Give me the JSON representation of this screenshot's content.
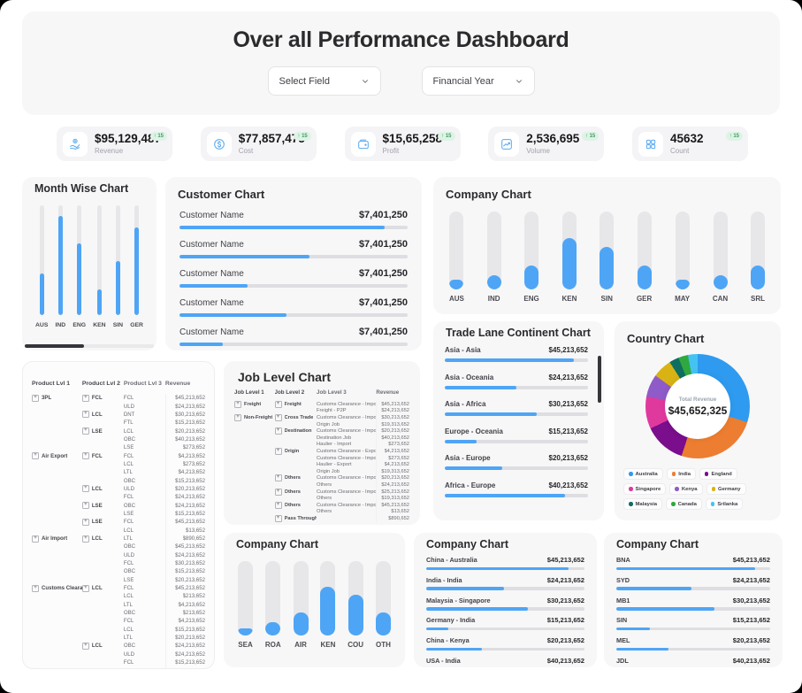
{
  "window": {
    "title": "Over all Performance Dashboard"
  },
  "filters": {
    "select_field": "Select Field",
    "financial_year": "Financial Year"
  },
  "colors": {
    "accent_blue": "#4EA5F5",
    "bar_track": "#E7E7EA",
    "badge_green_bg": "#DEF3E5",
    "badge_green_text": "#3D9B63",
    "card_bg": "#F7F7F8"
  },
  "kpis": [
    {
      "icon": "hand-coin-icon",
      "value": "$95,129,487",
      "label": "Revenue",
      "badge": "↑ 15"
    },
    {
      "icon": "dollar-circle-icon",
      "value": "$77,857,475",
      "label": "Cost",
      "badge": "↑ 15"
    },
    {
      "icon": "wallet-icon",
      "value": "$15,65,258",
      "label": "Profit",
      "badge": "↑ 15"
    },
    {
      "icon": "trend-line-icon",
      "value": "2,536,695",
      "label": "Volume",
      "badge": "↑ 15"
    },
    {
      "icon": "grid-icon",
      "value": "45632",
      "label": "Count",
      "badge": "↑ 15"
    }
  ],
  "chart_data": [
    {
      "id": "month_wise",
      "type": "bar",
      "title": "Month Wise Chart",
      "categories": [
        "AUS",
        "IND",
        "ENG",
        "KEN",
        "SIN",
        "GER"
      ],
      "values_pct": [
        38,
        90,
        65,
        23,
        49,
        80
      ]
    },
    {
      "id": "customer",
      "type": "bar",
      "title": "Customer Chart",
      "rows": [
        {
          "label": "Customer Name",
          "value": "$7,401,250",
          "pct": 90
        },
        {
          "label": "Customer Name",
          "value": "$7,401,250",
          "pct": 57
        },
        {
          "label": "Customer Name",
          "value": "$7,401,250",
          "pct": 30
        },
        {
          "label": "Customer Name",
          "value": "$7,401,250",
          "pct": 47
        },
        {
          "label": "Customer Name",
          "value": "$7,401,250",
          "pct": 19
        }
      ]
    },
    {
      "id": "company_countries",
      "type": "bar",
      "title": "Company Chart",
      "categories": [
        "AUS",
        "IND",
        "ENG",
        "KEN",
        "SIN",
        "GER",
        "MAY",
        "CAN",
        "SRL"
      ],
      "values_pct": [
        12,
        18,
        31,
        66,
        55,
        31,
        12,
        18,
        31
      ]
    },
    {
      "id": "product_levels",
      "type": "table",
      "headers": [
        "Product Lvl 1",
        "Product Lvl 2",
        "Product Lvl 3",
        "Revenue"
      ],
      "rows": [
        [
          "3PL",
          "FCL",
          "FCL",
          "$45,213,652"
        ],
        [
          "",
          "",
          "ULD",
          "$24,213,652"
        ],
        [
          "",
          "LCL",
          "DNT",
          "$30,213,652"
        ],
        [
          "",
          "",
          "FTL",
          "$15,213,652"
        ],
        [
          "",
          "LSE",
          "LCL",
          "$20,213,652"
        ],
        [
          "",
          "",
          "OBC",
          "$40,213,652"
        ],
        [
          "",
          "",
          "LSE",
          "$273,652"
        ],
        [
          "Air Export",
          "FCL",
          "FCL",
          "$4,213,652"
        ],
        [
          "",
          "",
          "LCL",
          "$273,652"
        ],
        [
          "",
          "",
          "LTL",
          "$4,213,652"
        ],
        [
          "",
          "",
          "OBC",
          "$15,213,652"
        ],
        [
          "",
          "LCL",
          "ULD",
          "$20,213,652"
        ],
        [
          "",
          "",
          "FCL",
          "$24,213,652"
        ],
        [
          "",
          "LSE",
          "OBC",
          "$24,213,652"
        ],
        [
          "",
          "",
          "LSE",
          "$15,213,652"
        ],
        [
          "",
          "LSE",
          "FCL",
          "$45,213,652"
        ],
        [
          "",
          "",
          "LCL",
          "$13,652"
        ],
        [
          "Air Import",
          "LCL",
          "LTL",
          "$890,652"
        ],
        [
          "",
          "",
          "OBC",
          "$45,213,652"
        ],
        [
          "",
          "",
          "ULD",
          "$24,213,652"
        ],
        [
          "",
          "",
          "FCL",
          "$30,213,652"
        ],
        [
          "",
          "",
          "OBC",
          "$15,213,652"
        ],
        [
          "",
          "",
          "LSE",
          "$20,213,652"
        ],
        [
          "Customs Clearance",
          "LCL",
          "FCL",
          "$45,213,652"
        ],
        [
          "",
          "",
          "LCL",
          "$213,652"
        ],
        [
          "",
          "",
          "LTL",
          "$4,213,652"
        ],
        [
          "",
          "",
          "OBC",
          "$213,652"
        ],
        [
          "",
          "",
          "FCL",
          "$4,213,652"
        ],
        [
          "",
          "",
          "LCL",
          "$15,213,652"
        ],
        [
          "",
          "",
          "LTL",
          "$20,213,652"
        ],
        [
          "",
          "LCL",
          "OBC",
          "$24,213,652"
        ],
        [
          "",
          "",
          "ULD",
          "$24,213,652"
        ],
        [
          "",
          "",
          "FCL",
          "$15,213,652"
        ],
        [
          "",
          "",
          "OBC",
          "$45,213,652"
        ],
        [
          "",
          "",
          "LSE",
          "$13,652"
        ]
      ]
    },
    {
      "id": "job_levels",
      "type": "table",
      "title": "Job Level Chart",
      "headers": [
        "Job Level 1",
        "Job Level 2",
        "Job Level 3",
        "Revenue"
      ],
      "rows": [
        [
          "Freight",
          "Freight",
          "Customs Clearance - Import",
          "$45,213,652"
        ],
        [
          "",
          "",
          "Freight - P2P",
          "$24,213,652"
        ],
        [
          "Non-Freight",
          "Cross Trade",
          "Customs Clearance - Import",
          "$30,213,652"
        ],
        [
          "",
          "",
          "Origin Job",
          "$19,313,652"
        ],
        [
          "",
          "Destination",
          "Customs Clearance - Import",
          "$20,213,652"
        ],
        [
          "",
          "",
          "Destination Job",
          "$40,213,652"
        ],
        [
          "",
          "",
          "Haulier - Import",
          "$273,652"
        ],
        [
          "",
          "Origin",
          "Customs Clearance - Export",
          "$4,213,652"
        ],
        [
          "",
          "",
          "Customs Clearance - Import",
          "$273,652"
        ],
        [
          "",
          "",
          "Haulier - Export",
          "$4,213,652"
        ],
        [
          "",
          "",
          "Origin Job",
          "$19,313,652"
        ],
        [
          "",
          "Others",
          "Customs Clearance - Import",
          "$20,213,652"
        ],
        [
          "",
          "",
          "Others",
          "$24,213,652"
        ],
        [
          "",
          "Others",
          "Customs Clearance - Import",
          "$25,213,652"
        ],
        [
          "",
          "",
          "Others",
          "$19,313,652"
        ],
        [
          "",
          "Others",
          "Customs Clearance - Import",
          "$45,213,652"
        ],
        [
          "",
          "",
          "Others",
          "$13,652"
        ],
        [
          "",
          "Pass Through",
          "",
          "$890,652"
        ]
      ]
    },
    {
      "id": "trade_lane",
      "type": "bar",
      "title": "Trade Lane Continent Chart",
      "rows": [
        {
          "label": "Asia - Asia",
          "value": "$45,213,652",
          "pct": 90
        },
        {
          "label": "Asia - Oceania",
          "value": "$24,213,652",
          "pct": 50
        },
        {
          "label": "Asia - Africa",
          "value": "$30,213,652",
          "pct": 64
        },
        {
          "label": "Europe - Oceania",
          "value": "$15,213,652",
          "pct": 22
        },
        {
          "label": "Asia - Europe",
          "value": "$20,213,652",
          "pct": 40
        },
        {
          "label": "Africa - Europe",
          "value": "$40,213,652",
          "pct": 84
        }
      ]
    },
    {
      "id": "country_donut",
      "type": "pie",
      "title": "Country Chart",
      "center_label": "Total Revenue",
      "center_value": "$45,652,325",
      "slices": [
        {
          "label": "Australia",
          "color": "#2E9BF0",
          "pct": 30
        },
        {
          "label": "India",
          "color": "#ED7D31",
          "pct": 25
        },
        {
          "label": "England",
          "color": "#7A0E8C",
          "pct": 13
        },
        {
          "label": "Singapore",
          "color": "#E0399E",
          "pct": 10
        },
        {
          "label": "Kenya",
          "color": "#8E5BC8",
          "pct": 7
        },
        {
          "label": "Germany",
          "color": "#D9B313",
          "pct": 6
        },
        {
          "label": "Malaysia",
          "color": "#0F6E5F",
          "pct": 3
        },
        {
          "label": "Canada",
          "color": "#2FA93F",
          "pct": 3
        },
        {
          "label": "Srilanka",
          "color": "#44C3F2",
          "pct": 3
        }
      ]
    },
    {
      "id": "company_modes",
      "type": "bar",
      "title": "Company Chart",
      "categories": [
        "SEA",
        "ROA",
        "AIR",
        "KEN",
        "COU",
        "OTH"
      ],
      "values_pct": [
        10,
        18,
        31,
        66,
        55,
        31
      ]
    },
    {
      "id": "company_lanes",
      "type": "bar",
      "title": "Company Chart",
      "rows": [
        {
          "label": "China - Australia",
          "value": "$45,213,652",
          "pct": 90
        },
        {
          "label": "India - India",
          "value": "$24,213,652",
          "pct": 49
        },
        {
          "label": "Malaysia - Singapore",
          "value": "$30,213,652",
          "pct": 64
        },
        {
          "label": "Germany - India",
          "value": "$15,213,652",
          "pct": 14
        },
        {
          "label": "China - Kenya",
          "value": "$20,213,652",
          "pct": 35
        },
        {
          "label": "USA - India",
          "value": "$40,213,652",
          "pct": 85
        }
      ]
    },
    {
      "id": "company_ports",
      "type": "bar",
      "title": "Company Chart",
      "rows": [
        {
          "label": "BNA",
          "value": "$45,213,652",
          "pct": 90
        },
        {
          "label": "SYD",
          "value": "$24,213,652",
          "pct": 49
        },
        {
          "label": "MB1",
          "value": "$30,213,652",
          "pct": 64
        },
        {
          "label": "SIN",
          "value": "$15,213,652",
          "pct": 22
        },
        {
          "label": "MEL",
          "value": "$20,213,652",
          "pct": 34
        },
        {
          "label": "JDL",
          "value": "$40,213,652",
          "pct": 85
        }
      ]
    }
  ]
}
